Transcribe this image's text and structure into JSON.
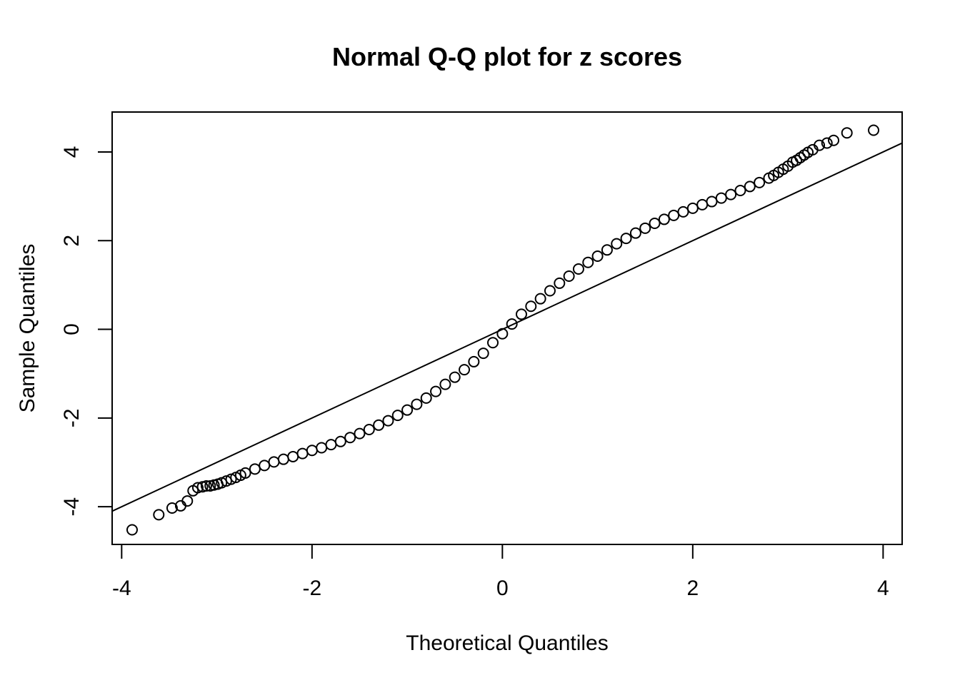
{
  "chart_data": {
    "type": "scatter",
    "title": "Normal Q-Q plot for z scores",
    "xlabel": "Theoretical Quantiles",
    "ylabel": "Sample Quantiles",
    "xlim": [
      -4.1,
      4.2
    ],
    "ylim": [
      -4.85,
      4.9
    ],
    "xticks": [
      -4,
      -2,
      0,
      2,
      4
    ],
    "xtick_labels": [
      "-4",
      "-2",
      "0",
      "2",
      "4"
    ],
    "yticks": [
      -4,
      -2,
      0,
      2,
      4
    ],
    "ytick_labels": [
      "-4",
      "-2",
      "0",
      "2",
      "4"
    ],
    "grid": false,
    "legend": "none",
    "marker": "open-circle",
    "colors": {
      "points": "#000000",
      "line": "#000000",
      "background": "#ffffff"
    },
    "series": [
      {
        "points": [
          [
            -3.89,
            -4.52
          ],
          [
            -3.61,
            -4.18
          ],
          [
            -3.47,
            -4.03
          ],
          [
            -3.38,
            -3.98
          ],
          [
            -3.31,
            -3.87
          ],
          [
            -3.25,
            -3.64
          ],
          [
            -3.2,
            -3.57
          ],
          [
            -3.15,
            -3.55
          ],
          [
            -3.11,
            -3.53
          ],
          [
            -3.07,
            -3.53
          ],
          [
            -3.03,
            -3.51
          ],
          [
            -2.99,
            -3.49
          ],
          [
            -2.95,
            -3.46
          ],
          [
            -2.9,
            -3.42
          ],
          [
            -2.85,
            -3.38
          ],
          [
            -2.8,
            -3.34
          ],
          [
            -2.75,
            -3.29
          ],
          [
            -2.7,
            -3.24
          ],
          [
            -2.6,
            -3.15
          ],
          [
            -2.5,
            -3.07
          ],
          [
            -2.4,
            -2.99
          ],
          [
            -2.3,
            -2.93
          ],
          [
            -2.2,
            -2.87
          ],
          [
            -2.1,
            -2.8
          ],
          [
            -2.0,
            -2.73
          ],
          [
            -1.9,
            -2.67
          ],
          [
            -1.8,
            -2.6
          ],
          [
            -1.7,
            -2.53
          ],
          [
            -1.6,
            -2.44
          ],
          [
            -1.5,
            -2.35
          ],
          [
            -1.4,
            -2.26
          ],
          [
            -1.3,
            -2.16
          ],
          [
            -1.2,
            -2.06
          ],
          [
            -1.1,
            -1.94
          ],
          [
            -1.0,
            -1.82
          ],
          [
            -0.9,
            -1.69
          ],
          [
            -0.8,
            -1.55
          ],
          [
            -0.7,
            -1.4
          ],
          [
            -0.6,
            -1.24
          ],
          [
            -0.5,
            -1.08
          ],
          [
            -0.4,
            -0.91
          ],
          [
            -0.3,
            -0.73
          ],
          [
            -0.2,
            -0.54
          ],
          [
            -0.1,
            -0.3
          ],
          [
            0.0,
            -0.1
          ],
          [
            0.1,
            0.12
          ],
          [
            0.2,
            0.34
          ],
          [
            0.3,
            0.52
          ],
          [
            0.4,
            0.69
          ],
          [
            0.5,
            0.87
          ],
          [
            0.6,
            1.04
          ],
          [
            0.7,
            1.2
          ],
          [
            0.8,
            1.36
          ],
          [
            0.9,
            1.51
          ],
          [
            1.0,
            1.65
          ],
          [
            1.1,
            1.79
          ],
          [
            1.2,
            1.93
          ],
          [
            1.3,
            2.05
          ],
          [
            1.4,
            2.17
          ],
          [
            1.5,
            2.28
          ],
          [
            1.6,
            2.39
          ],
          [
            1.7,
            2.48
          ],
          [
            1.8,
            2.57
          ],
          [
            1.9,
            2.65
          ],
          [
            2.0,
            2.73
          ],
          [
            2.1,
            2.81
          ],
          [
            2.2,
            2.88
          ],
          [
            2.3,
            2.96
          ],
          [
            2.4,
            3.04
          ],
          [
            2.5,
            3.13
          ],
          [
            2.6,
            3.22
          ],
          [
            2.7,
            3.31
          ],
          [
            2.8,
            3.41
          ],
          [
            2.85,
            3.47
          ],
          [
            2.9,
            3.54
          ],
          [
            2.95,
            3.61
          ],
          [
            3.0,
            3.68
          ],
          [
            3.05,
            3.77
          ],
          [
            3.09,
            3.81
          ],
          [
            3.13,
            3.87
          ],
          [
            3.17,
            3.93
          ],
          [
            3.21,
            3.99
          ],
          [
            3.26,
            4.05
          ],
          [
            3.33,
            4.15
          ],
          [
            3.41,
            4.2
          ],
          [
            3.48,
            4.26
          ],
          [
            3.62,
            4.43
          ],
          [
            3.9,
            4.49
          ]
        ]
      }
    ],
    "reference_line": {
      "slope": 1.0,
      "intercept": 0.0
    }
  }
}
